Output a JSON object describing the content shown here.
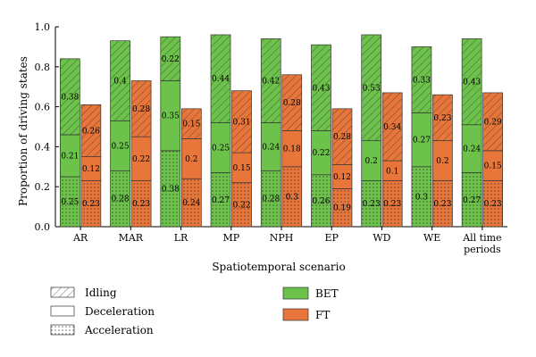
{
  "chart_data": {
    "type": "bar",
    "subtype": "stacked-grouped",
    "xlabel": "Spatiotemporal scenario",
    "ylabel": "Proportion of driving states",
    "ylim": [
      0,
      1.0
    ],
    "yticks": [
      0.0,
      0.2,
      0.4,
      0.6,
      0.8,
      1.0
    ],
    "ytick_labels": [
      "0.0",
      "0.2",
      "0.4",
      "0.6",
      "0.8",
      "1.0"
    ],
    "categories": [
      "AR",
      "MAR",
      "LR",
      "MP",
      "NPH",
      "EP",
      "WD",
      "WE",
      "All time\nperiods"
    ],
    "groups": [
      {
        "name": "BET",
        "color": "#6cc24a"
      },
      {
        "name": "FT",
        "color": "#e8763a"
      }
    ],
    "states": [
      {
        "name": "Acceleration",
        "pattern": "dots"
      },
      {
        "name": "Deceleration",
        "pattern": "none"
      },
      {
        "name": "Idling",
        "pattern": "hatch"
      }
    ],
    "series": [
      {
        "group": "BET",
        "state": "Acceleration",
        "values": [
          0.25,
          0.28,
          0.38,
          0.27,
          0.28,
          0.26,
          0.23,
          0.3,
          0.27
        ]
      },
      {
        "group": "BET",
        "state": "Deceleration",
        "values": [
          0.21,
          0.25,
          0.35,
          0.25,
          0.24,
          0.22,
          0.2,
          0.27,
          0.24
        ]
      },
      {
        "group": "BET",
        "state": "Idling",
        "values": [
          0.38,
          0.4,
          0.22,
          0.44,
          0.42,
          0.43,
          0.53,
          0.33,
          0.43
        ]
      },
      {
        "group": "FT",
        "state": "Acceleration",
        "values": [
          0.23,
          0.23,
          0.24,
          0.22,
          0.3,
          0.19,
          0.23,
          0.23,
          0.23
        ]
      },
      {
        "group": "FT",
        "state": "Deceleration",
        "values": [
          0.12,
          0.22,
          0.2,
          0.15,
          0.18,
          0.12,
          0.1,
          0.2,
          0.15
        ]
      },
      {
        "group": "FT",
        "state": "Idling",
        "values": [
          0.26,
          0.28,
          0.15,
          0.31,
          0.28,
          0.28,
          0.34,
          0.23,
          0.29
        ]
      }
    ],
    "legend": {
      "placement": "bottom",
      "patterns": [
        {
          "label": "Idling",
          "pattern": "hatch"
        },
        {
          "label": "Deceleration",
          "pattern": "none"
        },
        {
          "label": "Acceleration",
          "pattern": "dots"
        }
      ],
      "colors": [
        {
          "label": "BET",
          "color": "#6cc24a"
        },
        {
          "label": "FT",
          "color": "#e8763a"
        }
      ]
    },
    "grid": false
  }
}
